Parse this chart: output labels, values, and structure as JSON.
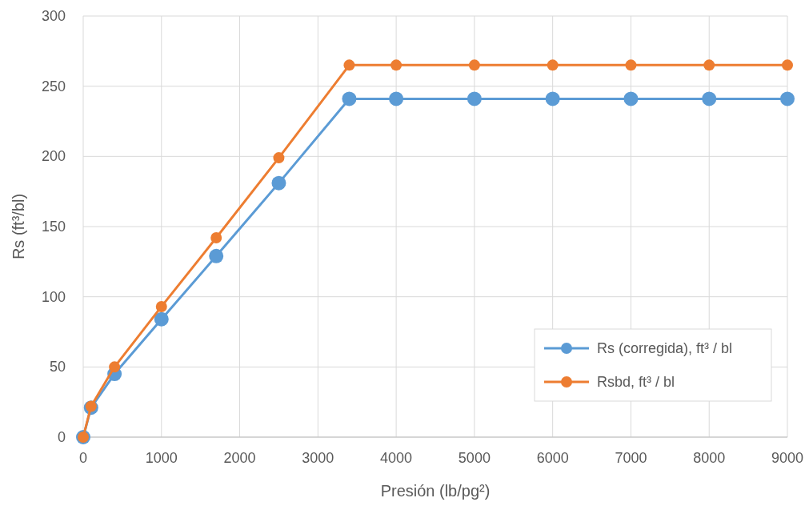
{
  "chart_data": {
    "type": "line",
    "xlabel": "Presión (lb/pg²)",
    "ylabel": "Rs (ft³/bl)",
    "xlim": [
      0,
      9000
    ],
    "xticks": [
      0,
      1000,
      2000,
      3000,
      4000,
      5000,
      6000,
      7000,
      8000,
      9000
    ],
    "ylim": [
      0,
      300
    ],
    "yticks": [
      0,
      50,
      100,
      150,
      200,
      250,
      300
    ],
    "grid": true,
    "legend": "bottom right",
    "marker": "circle",
    "line_style": "solid",
    "series": [
      {
        "name": "Rs (corregida), ft³ / bl",
        "color": "#5b9bd5",
        "x": [
          0,
          100,
          400,
          1000,
          1700,
          2500,
          3400,
          4000,
          5000,
          6000,
          7000,
          8000,
          9000
        ],
        "values": [
          0,
          21,
          45,
          84,
          129,
          181,
          241,
          241,
          241,
          241,
          241,
          241,
          241
        ]
      },
      {
        "name": "Rsbd, ft³ / bl",
        "color": "#ed7d31",
        "x": [
          0,
          100,
          400,
          1000,
          1700,
          2500,
          3400,
          4000,
          5000,
          6000,
          7000,
          8000,
          9000
        ],
        "values": [
          0,
          22,
          50,
          93,
          142,
          199,
          265,
          265,
          265,
          265,
          265,
          265,
          265
        ]
      }
    ]
  }
}
